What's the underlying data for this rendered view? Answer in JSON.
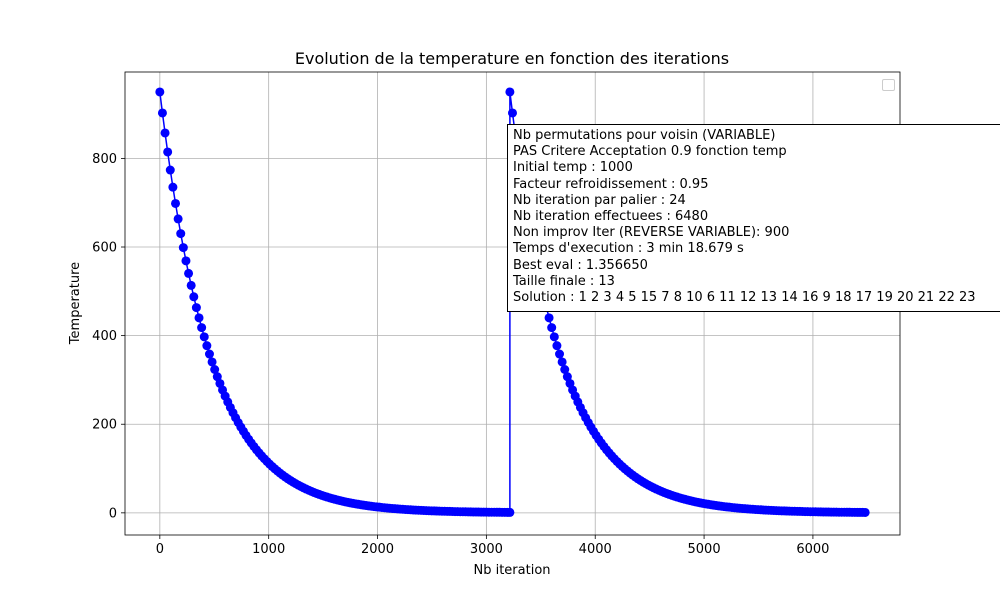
{
  "chart_data": {
    "type": "line",
    "title": "Evolution de la temperature en fonction des iterations",
    "xlabel": "Nb iteration",
    "ylabel": "Temperature",
    "xlim": [
      -320,
      6800
    ],
    "ylim": [
      -50,
      995
    ],
    "xticks": [
      0,
      1000,
      2000,
      3000,
      4000,
      5000,
      6000
    ],
    "yticks": [
      0,
      200,
      400,
      600,
      800
    ],
    "grid": true,
    "legend": "top-right (empty)",
    "series": [
      {
        "color": "#0000ff",
        "marker": "circle",
        "schedule": {
          "initial_temp": 1000,
          "cooling_factor": 0.95,
          "iterations_per_step": 24,
          "total_iterations": 6480,
          "restart_at_iteration": 3216
        }
      }
    ]
  },
  "annotation": {
    "lines": [
      "Nb permutations pour voisin (VARIABLE)",
      "PAS Critere Acceptation 0.9 fonction temp",
      "Initial temp : 1000",
      "Facteur refroidissement : 0.95",
      "Nb iteration par palier : 24",
      "Nb iteration effectuees : 6480",
      "Non improv Iter (REVERSE VARIABLE): 900",
      "Temps d'execution : 3 min 18.679 s",
      "Best eval : 1.356650",
      "Taille finale : 13",
      "Solution : 1 2 3 4 5 15 7 8 10 6 11 12 13 14 16 9 18 17 19 20 21 22 23"
    ]
  }
}
